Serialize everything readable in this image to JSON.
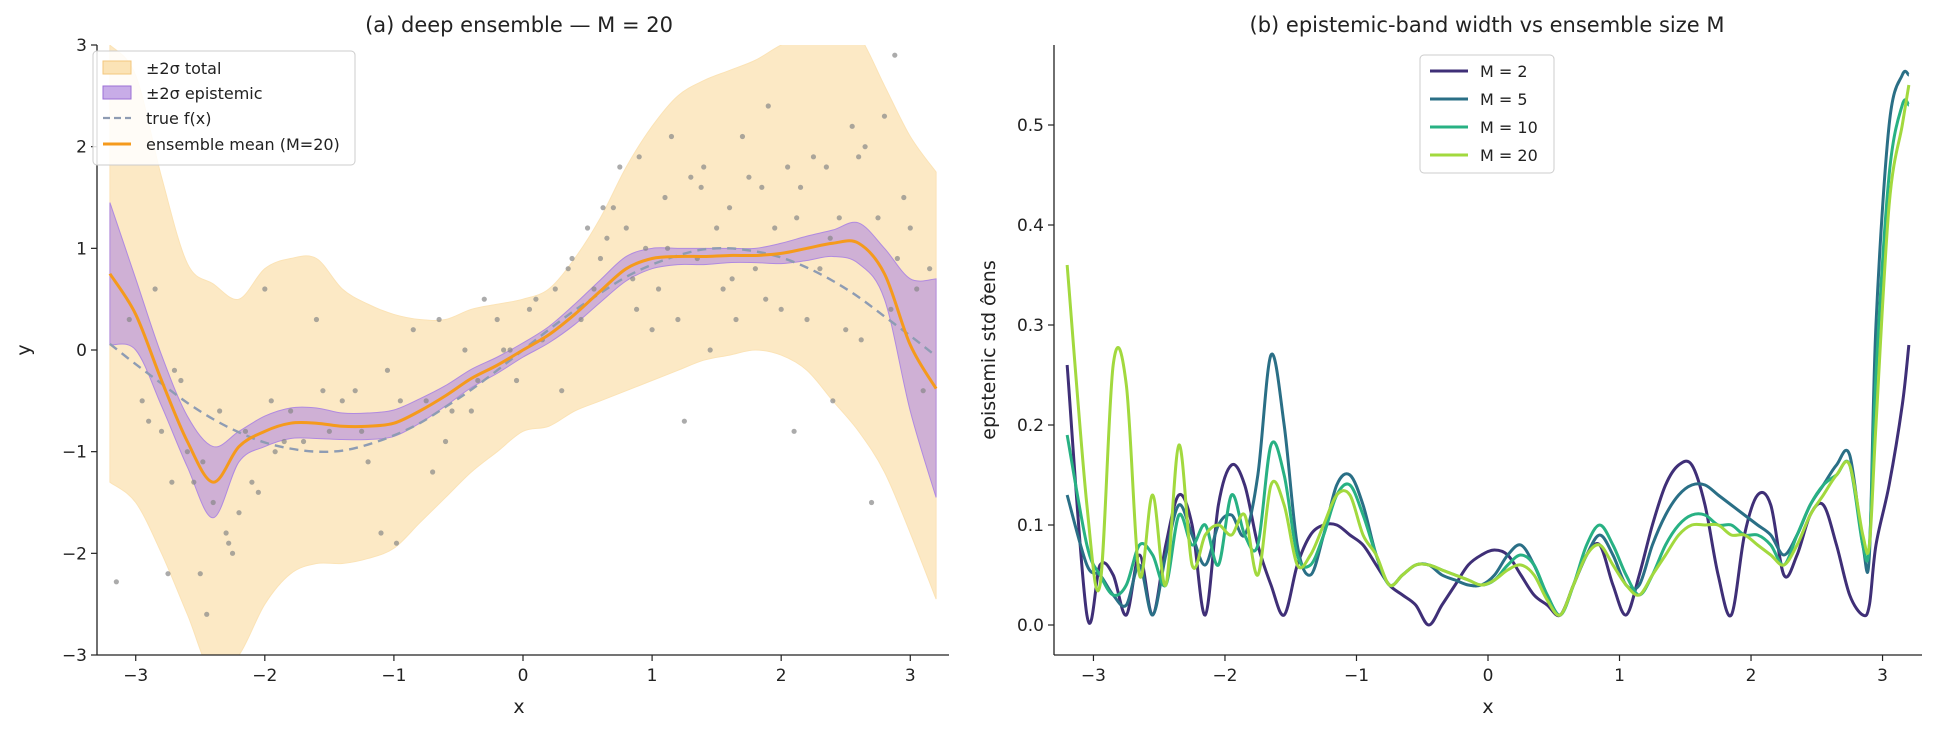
{
  "colors": {
    "total_band": "#fbe3b6",
    "epistemic_band": "#b08ae0",
    "true_f": "#8e9cb3",
    "ensemble_mean": "#f59a1c",
    "points": "#888888",
    "m2": "#3f2f77",
    "m5": "#2a6f86",
    "m10": "#28b183",
    "m20": "#a2d93e"
  },
  "chart_data": [
    {
      "type": "line",
      "title": "(a) deep ensemble — M = 20",
      "xlabel": "x",
      "ylabel": "y",
      "xlim": [
        -3.3,
        3.3
      ],
      "ylim": [
        -3,
        3
      ],
      "xticks": [
        "−3",
        "−2",
        "−1",
        "0",
        "1",
        "2",
        "3"
      ],
      "yticks": [
        "−3",
        "−2",
        "−1",
        "0",
        "1",
        "2",
        "3"
      ],
      "grid": false,
      "legend_position": "top-left",
      "legend": [
        "±2σ total",
        "±2σ epistemic",
        "true f(x)",
        "ensemble mean (M=20)"
      ],
      "x": [
        -3.2,
        -3.0,
        -2.8,
        -2.6,
        -2.4,
        -2.2,
        -2.0,
        -1.8,
        -1.6,
        -1.4,
        -1.2,
        -1.0,
        -0.8,
        -0.6,
        -0.4,
        -0.2,
        0.0,
        0.2,
        0.4,
        0.6,
        0.8,
        1.0,
        1.2,
        1.4,
        1.6,
        1.8,
        2.0,
        2.2,
        2.4,
        2.6,
        2.8,
        3.0,
        3.2
      ],
      "series": [
        {
          "name": "ensemble mean (M=20)",
          "values": [
            0.75,
            0.35,
            -0.3,
            -0.9,
            -1.3,
            -0.95,
            -0.8,
            -0.72,
            -0.72,
            -0.75,
            -0.75,
            -0.72,
            -0.6,
            -0.45,
            -0.28,
            -0.15,
            0.0,
            0.15,
            0.35,
            0.58,
            0.8,
            0.9,
            0.92,
            0.92,
            0.93,
            0.93,
            0.95,
            1.0,
            1.05,
            1.05,
            0.75,
            0.05,
            -0.38
          ]
        },
        {
          "name": "true f(x)",
          "values": [
            0.06,
            -0.14,
            -0.33,
            -0.52,
            -0.68,
            -0.81,
            -0.91,
            -0.97,
            -1.0,
            -0.99,
            -0.93,
            -0.84,
            -0.72,
            -0.56,
            -0.39,
            -0.2,
            0.0,
            0.2,
            0.39,
            0.56,
            0.72,
            0.84,
            0.93,
            0.99,
            1.0,
            0.97,
            0.91,
            0.81,
            0.68,
            0.52,
            0.33,
            0.14,
            -0.06
          ]
        },
        {
          "name": "±2σ epistemic",
          "lower": [
            0.05,
            0.0,
            -0.55,
            -1.15,
            -1.65,
            -1.1,
            -0.95,
            -0.87,
            -0.87,
            -0.88,
            -0.88,
            -0.85,
            -0.72,
            -0.55,
            -0.37,
            -0.23,
            -0.07,
            0.07,
            0.25,
            0.47,
            0.68,
            0.8,
            0.84,
            0.84,
            0.86,
            0.86,
            0.85,
            0.88,
            0.92,
            0.85,
            0.5,
            -0.6,
            -1.45
          ],
          "upper": [
            1.45,
            0.7,
            -0.05,
            -0.65,
            -0.95,
            -0.8,
            -0.65,
            -0.57,
            -0.57,
            -0.62,
            -0.62,
            -0.59,
            -0.48,
            -0.35,
            -0.19,
            -0.07,
            0.07,
            0.23,
            0.45,
            0.69,
            0.92,
            1.0,
            1.0,
            1.0,
            1.0,
            1.0,
            1.05,
            1.12,
            1.18,
            1.25,
            1.0,
            0.7,
            0.7
          ]
        },
        {
          "name": "±2σ total",
          "lower": [
            -1.3,
            -1.5,
            -2.0,
            -2.6,
            -3.2,
            -3.0,
            -2.5,
            -2.2,
            -2.1,
            -2.1,
            -2.05,
            -1.95,
            -1.7,
            -1.45,
            -1.2,
            -1.0,
            -0.8,
            -0.75,
            -0.6,
            -0.5,
            -0.4,
            -0.3,
            -0.2,
            -0.1,
            -0.05,
            0.0,
            -0.05,
            -0.2,
            -0.5,
            -0.8,
            -1.2,
            -1.8,
            -2.45
          ],
          "upper": [
            3.0,
            2.7,
            1.7,
            0.85,
            0.65,
            0.5,
            0.8,
            0.9,
            0.9,
            0.6,
            0.45,
            0.35,
            0.3,
            0.3,
            0.4,
            0.45,
            0.5,
            0.6,
            0.9,
            1.3,
            1.8,
            2.2,
            2.5,
            2.65,
            2.75,
            2.85,
            3.0,
            3.1,
            3.3,
            3.1,
            2.6,
            2.1,
            1.75
          ]
        }
      ],
      "scatter": {
        "x": [
          -3.15,
          -3.05,
          -2.95,
          -2.9,
          -2.85,
          -2.8,
          -2.75,
          -2.7,
          -2.65,
          -2.6,
          -2.55,
          -2.5,
          -2.45,
          -2.4,
          -2.35,
          -2.3,
          -2.25,
          -2.2,
          -2.15,
          -2.1,
          -2.05,
          -2.0,
          -1.95,
          -1.85,
          -1.8,
          -1.7,
          -1.6,
          -1.5,
          -1.4,
          -1.3,
          -1.2,
          -1.1,
          -1.05,
          -0.95,
          -0.85,
          -0.75,
          -0.65,
          -0.6,
          -0.55,
          -0.45,
          -0.35,
          -0.3,
          -0.2,
          -0.1,
          -0.05,
          0.05,
          0.15,
          0.25,
          0.3,
          0.35,
          0.45,
          0.5,
          0.55,
          0.6,
          0.65,
          0.7,
          0.75,
          0.8,
          0.85,
          0.9,
          0.95,
          1.0,
          1.05,
          1.1,
          1.15,
          1.2,
          1.25,
          1.3,
          1.35,
          1.4,
          1.45,
          1.5,
          1.55,
          1.6,
          1.65,
          1.7,
          1.75,
          1.8,
          1.85,
          1.9,
          1.95,
          2.0,
          2.05,
          2.1,
          2.15,
          2.2,
          2.25,
          2.3,
          2.35,
          2.4,
          2.45,
          2.5,
          2.55,
          2.6,
          2.65,
          2.7,
          2.75,
          2.8,
          2.85,
          2.9,
          2.95,
          3.0,
          3.05,
          3.1,
          3.15,
          -2.72,
          -2.48,
          -2.28,
          -1.92,
          -1.55,
          -1.25,
          -0.98,
          -0.7,
          -0.4,
          -0.15,
          0.1,
          0.38,
          0.62,
          0.88,
          1.12,
          1.38,
          1.62,
          1.88,
          2.12,
          2.38,
          2.62,
          2.88
        ],
        "y": [
          -2.28,
          0.3,
          -0.5,
          -0.7,
          0.6,
          -0.8,
          -2.2,
          -0.2,
          -0.3,
          -1.0,
          -1.3,
          -2.2,
          -2.6,
          -1.5,
          -0.6,
          -1.8,
          -2.0,
          -1.6,
          -0.8,
          -1.3,
          -1.4,
          0.6,
          -0.5,
          -0.9,
          -0.6,
          -0.9,
          0.3,
          -0.8,
          -0.5,
          -0.4,
          -1.1,
          -1.8,
          -0.2,
          -0.5,
          0.2,
          -0.5,
          0.3,
          -0.9,
          -0.6,
          0.0,
          -0.3,
          0.5,
          0.3,
          0.0,
          -0.3,
          0.4,
          0.1,
          0.6,
          -0.4,
          0.8,
          0.3,
          1.2,
          0.6,
          0.9,
          1.1,
          1.4,
          1.8,
          1.2,
          0.7,
          1.9,
          1.0,
          0.2,
          0.6,
          1.5,
          2.1,
          0.3,
          -0.7,
          1.7,
          0.9,
          1.8,
          0.0,
          1.2,
          0.6,
          1.4,
          0.3,
          2.1,
          1.7,
          0.8,
          1.6,
          2.4,
          1.2,
          0.4,
          1.8,
          -0.8,
          1.6,
          0.3,
          1.9,
          0.8,
          1.8,
          -0.5,
          1.3,
          0.2,
          2.2,
          1.9,
          2.0,
          -1.5,
          1.3,
          2.3,
          0.4,
          0.9,
          1.5,
          1.2,
          0.6,
          -0.4,
          0.8,
          -1.3,
          -1.1,
          -1.9,
          -1.0,
          -0.4,
          -0.8,
          -1.9,
          -1.2,
          -0.6,
          0.0,
          0.5,
          0.9,
          1.4,
          0.4,
          1.0,
          1.6,
          0.7,
          0.5,
          1.3,
          1.1,
          0.1,
          2.9
        ]
      }
    },
    {
      "type": "line",
      "title": "(b) epistemic-band width vs ensemble size M",
      "xlabel": "x",
      "ylabel": "epistemic std σ̂ens",
      "xlim": [
        -3.3,
        3.3
      ],
      "ylim": [
        -0.03,
        0.58
      ],
      "xticks": [
        "−3",
        "−2",
        "−1",
        "0",
        "1",
        "2",
        "3"
      ],
      "yticks": [
        "0.0",
        "0.1",
        "0.2",
        "0.3",
        "0.4",
        "0.5"
      ],
      "grid": false,
      "legend_position": "top-center",
      "legend": [
        "M = 2",
        "M = 5",
        "M = 10",
        "M = 20"
      ],
      "x": [
        -3.2,
        -3.05,
        -2.95,
        -2.85,
        -2.75,
        -2.65,
        -2.55,
        -2.45,
        -2.35,
        -2.25,
        -2.15,
        -2.05,
        -1.95,
        -1.85,
        -1.75,
        -1.65,
        -1.55,
        -1.45,
        -1.35,
        -1.25,
        -1.15,
        -1.05,
        -0.95,
        -0.85,
        -0.75,
        -0.65,
        -0.55,
        -0.45,
        -0.35,
        -0.25,
        -0.15,
        -0.05,
        0.05,
        0.15,
        0.25,
        0.35,
        0.45,
        0.55,
        0.65,
        0.75,
        0.85,
        0.95,
        1.05,
        1.15,
        1.25,
        1.35,
        1.45,
        1.55,
        1.65,
        1.75,
        1.85,
        1.95,
        2.05,
        2.15,
        2.25,
        2.35,
        2.45,
        2.55,
        2.65,
        2.75,
        2.85,
        2.9,
        2.95,
        3.05,
        3.15,
        3.2
      ],
      "series": [
        {
          "name": "M = 2",
          "values": [
            0.26,
            0.01,
            0.06,
            0.05,
            0.01,
            0.07,
            0.01,
            0.08,
            0.13,
            0.1,
            0.01,
            0.12,
            0.16,
            0.14,
            0.08,
            0.04,
            0.01,
            0.06,
            0.09,
            0.1,
            0.1,
            0.09,
            0.08,
            0.06,
            0.04,
            0.03,
            0.02,
            0.0,
            0.02,
            0.04,
            0.06,
            0.07,
            0.075,
            0.07,
            0.05,
            0.03,
            0.02,
            0.01,
            0.04,
            0.07,
            0.08,
            0.04,
            0.01,
            0.05,
            0.1,
            0.14,
            0.16,
            0.16,
            0.12,
            0.05,
            0.01,
            0.09,
            0.13,
            0.12,
            0.05,
            0.07,
            0.11,
            0.12,
            0.08,
            0.03,
            0.01,
            0.02,
            0.08,
            0.14,
            0.22,
            0.28
          ]
        },
        {
          "name": "M = 5",
          "values": [
            0.13,
            0.06,
            0.05,
            0.03,
            0.02,
            0.06,
            0.01,
            0.07,
            0.12,
            0.09,
            0.06,
            0.1,
            0.11,
            0.09,
            0.15,
            0.27,
            0.2,
            0.08,
            0.05,
            0.09,
            0.14,
            0.15,
            0.12,
            0.07,
            0.04,
            0.05,
            0.06,
            0.06,
            0.05,
            0.045,
            0.04,
            0.04,
            0.05,
            0.07,
            0.08,
            0.06,
            0.03,
            0.01,
            0.04,
            0.07,
            0.09,
            0.07,
            0.04,
            0.04,
            0.08,
            0.11,
            0.13,
            0.14,
            0.14,
            0.13,
            0.12,
            0.11,
            0.1,
            0.09,
            0.07,
            0.09,
            0.12,
            0.14,
            0.16,
            0.17,
            0.08,
            0.07,
            0.3,
            0.5,
            0.55,
            0.55
          ]
        },
        {
          "name": "M = 10",
          "values": [
            0.19,
            0.08,
            0.05,
            0.03,
            0.04,
            0.08,
            0.07,
            0.04,
            0.11,
            0.08,
            0.1,
            0.06,
            0.13,
            0.09,
            0.08,
            0.18,
            0.15,
            0.07,
            0.06,
            0.09,
            0.13,
            0.14,
            0.11,
            0.07,
            0.04,
            0.05,
            0.06,
            0.06,
            0.055,
            0.05,
            0.045,
            0.04,
            0.045,
            0.06,
            0.07,
            0.06,
            0.03,
            0.01,
            0.04,
            0.08,
            0.1,
            0.08,
            0.05,
            0.03,
            0.05,
            0.08,
            0.1,
            0.11,
            0.11,
            0.1,
            0.1,
            0.09,
            0.09,
            0.08,
            0.06,
            0.09,
            0.12,
            0.14,
            0.15,
            0.16,
            0.08,
            0.08,
            0.25,
            0.45,
            0.52,
            0.52
          ]
        },
        {
          "name": "M = 20",
          "values": [
            0.36,
            0.12,
            0.04,
            0.26,
            0.24,
            0.05,
            0.13,
            0.04,
            0.18,
            0.06,
            0.09,
            0.1,
            0.09,
            0.11,
            0.05,
            0.14,
            0.12,
            0.06,
            0.07,
            0.1,
            0.13,
            0.13,
            0.09,
            0.07,
            0.04,
            0.05,
            0.06,
            0.06,
            0.055,
            0.05,
            0.045,
            0.04,
            0.045,
            0.055,
            0.06,
            0.05,
            0.025,
            0.01,
            0.04,
            0.07,
            0.08,
            0.06,
            0.04,
            0.03,
            0.05,
            0.07,
            0.09,
            0.1,
            0.1,
            0.1,
            0.09,
            0.09,
            0.08,
            0.07,
            0.06,
            0.08,
            0.11,
            0.13,
            0.15,
            0.16,
            0.09,
            0.08,
            0.2,
            0.42,
            0.5,
            0.54
          ]
        }
      ]
    }
  ]
}
